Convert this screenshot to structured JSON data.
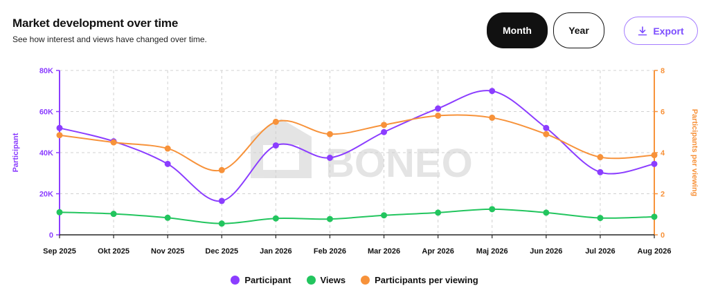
{
  "header": {
    "title": "Market development over time",
    "subtitle": "See how interest and views have changed over time."
  },
  "controls": {
    "month_label": "Month",
    "year_label": "Year",
    "export_label": "Export",
    "export_icon": "download-icon",
    "selected": "Month"
  },
  "watermark": {
    "text": "BONEO"
  },
  "colors": {
    "participant": "#8b3dff",
    "views": "#22c55e",
    "per_viewing": "#f7923a",
    "grid": "#d0d0d0"
  },
  "chart_data": {
    "type": "line",
    "categories": [
      "Sep 2025",
      "Okt 2025",
      "Nov 2025",
      "Dec 2025",
      "Jan 2026",
      "Feb 2026",
      "Mar 2026",
      "Apr 2026",
      "Maj 2026",
      "Jun 2026",
      "Jul 2026",
      "Aug 2026"
    ],
    "y_left": {
      "label": "Participant",
      "min": 0,
      "max": 80000,
      "ticks": [
        "0",
        "20K",
        "40K",
        "60K",
        "80K"
      ]
    },
    "y_right": {
      "label": "Participants per viewing",
      "min": 0,
      "max": 8,
      "ticks": [
        "0",
        "2",
        "4",
        "6",
        "8"
      ]
    },
    "series": [
      {
        "name": "Participant",
        "axis": "left",
        "values": [
          52000,
          45500,
          34500,
          16500,
          43500,
          37500,
          50000,
          61500,
          70000,
          52000,
          30500,
          34500
        ]
      },
      {
        "name": "Views",
        "axis": "left",
        "values": [
          11000,
          10200,
          8300,
          5500,
          8000,
          7700,
          9500,
          10800,
          12500,
          10800,
          8200,
          8800
        ]
      },
      {
        "name": "Participants per viewing",
        "axis": "right",
        "values": [
          4.85,
          4.5,
          4.2,
          3.15,
          5.5,
          4.9,
          5.35,
          5.8,
          5.7,
          4.9,
          3.78,
          3.88
        ]
      }
    ],
    "grid": true,
    "legend_position": "bottom"
  }
}
